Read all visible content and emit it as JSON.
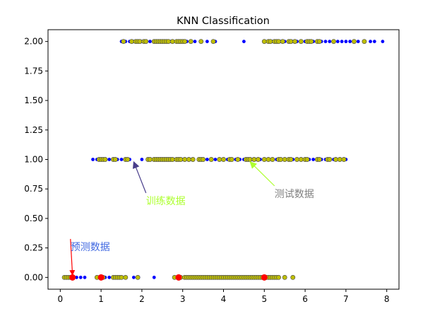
{
  "chart_data": {
    "type": "scatter",
    "title": "KNN Classification",
    "xlabel": "",
    "ylabel": "",
    "xlim": [
      -0.3,
      8.3
    ],
    "ylim": [
      -0.1,
      2.1
    ],
    "xticks": [
      "0",
      "1",
      "2",
      "3",
      "4",
      "5",
      "6",
      "7",
      "8"
    ],
    "yticks": [
      "0.00",
      "0.25",
      "0.50",
      "0.75",
      "1.00",
      "1.25",
      "1.50",
      "1.75",
      "2.00"
    ],
    "grid": false,
    "legend": "none",
    "series": [
      {
        "color": "#0000ff",
        "marker": "circle-small",
        "x": [
          0.4,
          0.5,
          0.6,
          1.2,
          1.3,
          1.8,
          2.3,
          0.1,
          0.2,
          1.1,
          0.8,
          0.9,
          1.2,
          1.4,
          1.5,
          1.7,
          2.0,
          2.8,
          3.0,
          3.2,
          3.4,
          3.6,
          3.8,
          4.1,
          4.3,
          4.4,
          4.5,
          4.7,
          4.8,
          4.9,
          5.3,
          5.4,
          5.5,
          5.7,
          5.8,
          6.1,
          6.2,
          6.4,
          6.5,
          6.7,
          7.0,
          1.5,
          1.6,
          1.7,
          1.8,
          2.0,
          2.2,
          2.6,
          2.7,
          3.1,
          3.3,
          3.6,
          3.8,
          4.5,
          5.2,
          5.4,
          5.5,
          5.7,
          5.8,
          6.0,
          6.2,
          6.4,
          6.5,
          6.6,
          6.8,
          6.9,
          7.0,
          7.1,
          7.3,
          7.6,
          7.7,
          7.9
        ],
        "y": [
          0,
          0,
          0,
          0,
          0,
          0,
          0,
          0,
          0,
          0,
          1,
          1,
          1,
          1,
          1,
          1,
          1,
          1,
          1,
          1,
          1,
          1,
          1,
          1,
          1,
          1,
          1,
          1,
          1,
          1,
          1,
          1,
          1,
          1,
          1,
          1,
          1,
          1,
          1,
          1,
          1,
          2,
          2,
          2,
          2,
          2,
          2,
          2,
          2,
          2,
          2,
          2,
          2,
          2,
          2,
          2,
          2,
          2,
          2,
          2,
          2,
          2,
          2,
          2,
          2,
          2,
          2,
          2,
          2,
          2,
          2,
          2
        ]
      },
      {
        "color": "#bfbf00",
        "marker": "circle-edged",
        "x": [
          0.1,
          0.15,
          0.2,
          0.25,
          0.3,
          0.9,
          1.05,
          1.3,
          1.35,
          1.4,
          1.45,
          1.5,
          1.6,
          1.9,
          2.8,
          2.95,
          3.05,
          3.1,
          3.15,
          3.2,
          3.25,
          3.3,
          3.35,
          3.4,
          3.45,
          3.5,
          3.55,
          3.6,
          3.65,
          3.7,
          3.75,
          3.8,
          3.85,
          3.9,
          3.95,
          4.0,
          4.05,
          4.1,
          4.15,
          4.2,
          4.25,
          4.3,
          4.35,
          4.4,
          4.45,
          4.5,
          4.55,
          4.6,
          4.65,
          4.7,
          4.75,
          4.8,
          4.85,
          4.9,
          4.95,
          5.0,
          5.05,
          5.1,
          5.15,
          5.2,
          5.25,
          5.3,
          5.35,
          5.5,
          5.7,
          0.95,
          1.0,
          1.05,
          1.1,
          1.3,
          1.35,
          1.6,
          1.65,
          2.15,
          2.2,
          2.3,
          2.35,
          2.4,
          2.45,
          2.5,
          2.55,
          2.6,
          2.65,
          2.7,
          2.75,
          2.85,
          2.9,
          2.95,
          3.05,
          3.15,
          3.25,
          3.4,
          3.45,
          3.5,
          3.7,
          3.9,
          4.0,
          4.15,
          4.2,
          4.35,
          4.55,
          4.6,
          4.65,
          4.75,
          4.85,
          5.0,
          5.1,
          5.2,
          5.35,
          5.4,
          5.5,
          5.6,
          5.65,
          5.8,
          5.9,
          6.0,
          6.05,
          6.3,
          6.35,
          6.55,
          6.6,
          6.75,
          6.85,
          6.95,
          1.55,
          1.75,
          1.85,
          1.9,
          1.95,
          2.05,
          2.1,
          2.3,
          2.35,
          2.4,
          2.45,
          2.5,
          2.55,
          2.6,
          2.65,
          2.75,
          2.85,
          2.9,
          2.95,
          3.0,
          3.05,
          3.2,
          3.45,
          3.75,
          5.0,
          5.1,
          5.15,
          5.25,
          5.3,
          5.35,
          5.45,
          5.6,
          5.65,
          5.75,
          5.9,
          6.05,
          6.1,
          6.15,
          6.3,
          6.35,
          6.7,
          7.2,
          7.45
        ],
        "y": [
          0,
          0,
          0,
          0,
          0,
          0,
          0,
          0,
          0,
          0,
          0,
          0,
          0,
          0,
          0,
          0,
          0,
          0,
          0,
          0,
          0,
          0,
          0,
          0,
          0,
          0,
          0,
          0,
          0,
          0,
          0,
          0,
          0,
          0,
          0,
          0,
          0,
          0,
          0,
          0,
          0,
          0,
          0,
          0,
          0,
          0,
          0,
          0,
          0,
          0,
          0,
          0,
          0,
          0,
          0,
          0,
          0,
          0,
          0,
          0,
          0,
          0,
          0,
          0,
          0,
          1,
          1,
          1,
          1,
          1,
          1,
          1,
          1,
          1,
          1,
          1,
          1,
          1,
          1,
          1,
          1,
          1,
          1,
          1,
          1,
          1,
          1,
          1,
          1,
          1,
          1,
          1,
          1,
          1,
          1,
          1,
          1,
          1,
          1,
          1,
          1,
          1,
          1,
          1,
          1,
          1,
          1,
          1,
          1,
          1,
          1,
          1,
          1,
          1,
          1,
          1,
          1,
          1,
          1,
          1,
          1,
          1,
          1,
          1,
          2,
          2,
          2,
          2,
          2,
          2,
          2,
          2,
          2,
          2,
          2,
          2,
          2,
          2,
          2,
          2,
          2,
          2,
          2,
          2,
          2,
          2,
          2,
          2,
          2,
          2,
          2,
          2,
          2,
          2,
          2,
          2,
          2,
          2,
          2,
          2,
          2,
          2,
          2,
          2,
          2,
          2,
          2
        ]
      },
      {
        "color": "#ff0000",
        "marker": "circle-large",
        "x": [
          0.3,
          1.0,
          2.9,
          5.0
        ],
        "y": [
          0,
          0,
          0,
          0
        ]
      }
    ],
    "annotations": [
      {
        "text": "训练数据",
        "color": "#adff2f",
        "arrow_color": "#483d8b",
        "text_x": 2.1,
        "text_y": 0.62,
        "target_x": 1.8,
        "target_y": 0.98
      },
      {
        "text": "测试数据",
        "color": "#808080",
        "arrow_color": "#adff2f",
        "text_x": 5.25,
        "text_y": 0.68,
        "target_x": 4.65,
        "target_y": 0.98
      },
      {
        "text": "预测数据",
        "color": "#4169e1",
        "arrow_color": "#ff0000",
        "text_x": 0.25,
        "text_y": 0.23,
        "target_x": 0.3,
        "target_y": 0.02
      }
    ]
  }
}
